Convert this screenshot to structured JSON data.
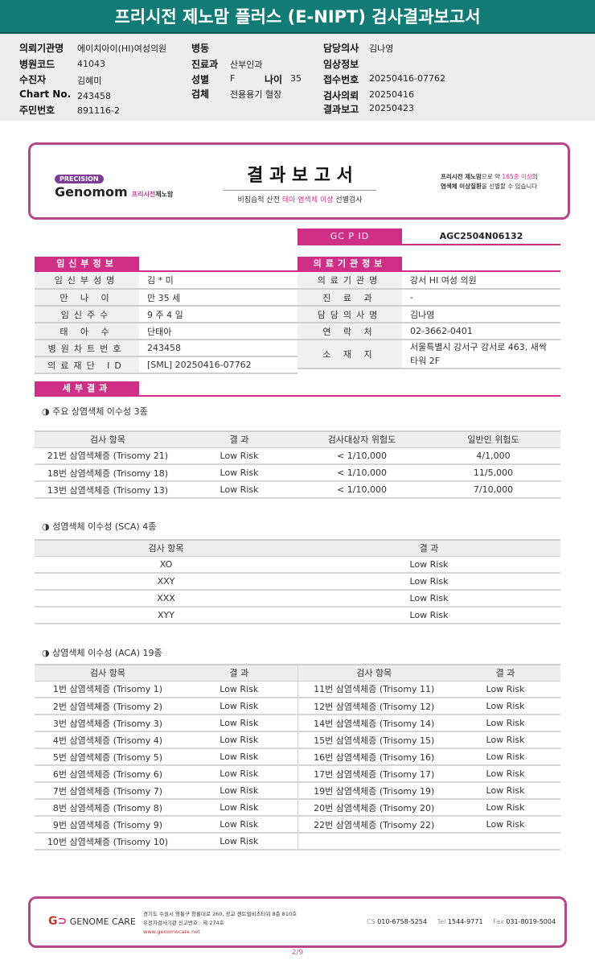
{
  "title": "프리시전 제노맘 플러스 (E-NIPT) 검사결과보고서",
  "info": {
    "institution_label": "의뢰기관명",
    "institution": "에이치아이(HI)여성의원",
    "hospital_code_label": "병원코드",
    "hospital_code": "41043",
    "patient_label": "수진자",
    "patient": "김혜미",
    "chart_label": "Chart No.",
    "chart": "243458",
    "rrn_label": "주민번호",
    "rrn": "891116-2",
    "ward_label": "병동",
    "ward": "",
    "dept_label": "진료과",
    "dept": "산부인과",
    "sex_label": "성별",
    "sex": "F",
    "age_label": "나이",
    "age": "35",
    "specimen_label": "검체",
    "specimen": "전용용기 혈장",
    "doctor_label": "담당의사",
    "doctor": "김나영",
    "clinical_label": "임상정보",
    "clinical": "",
    "receipt_label": "접수번호",
    "receipt": "20250416-07762",
    "request_label": "검사의뢰",
    "request": "20250416",
    "report_label": "결과보고",
    "report": "20250423"
  },
  "banner": {
    "badge": "PRECISION",
    "brand": "Genomom",
    "brand_sub1": "프리시전",
    "brand_sub2": "제노맘",
    "title": "결 과 보 고 서",
    "subtitle_pre": "비침습적 산전 ",
    "subtitle_hl": "태아 염색체 이상",
    "subtitle_post": " 선별검사",
    "right_1a": "프리시전 제노맘",
    "right_1b": "으로 약 ",
    "right_1c": "165종 이상",
    "right_1d": "의",
    "right_2a": "염색체 이상질환",
    "right_2b": "을 선별할 수 있습니다"
  },
  "gcpid": {
    "label": "GC P ID",
    "value": "AGC2504N06132"
  },
  "pregnant": {
    "header": "임신부정보",
    "rows": [
      {
        "k": "임신부성명",
        "v": "김 * 미"
      },
      {
        "k": "만 나 이",
        "v": "만 35 세"
      },
      {
        "k": "임신주수",
        "v": "9 주 4 일"
      },
      {
        "k": "태 아 수",
        "v": "단태아"
      },
      {
        "k": "병원차트번호",
        "v": "243458"
      },
      {
        "k": "의료재단 ID",
        "v": "[SML] 20250416-07762"
      }
    ]
  },
  "medical": {
    "header": "의료기관정보",
    "rows": [
      {
        "k": "의료기관명",
        "v": "강서 HI 여성 의원"
      },
      {
        "k": "진 료 과",
        "v": "-"
      },
      {
        "k": "담당의사명",
        "v": "김나영"
      },
      {
        "k": "연 락 처",
        "v": "02-3662-0401"
      },
      {
        "k": "소 재 지",
        "v": "서울특별시 강서구 강서로 463, 새싹타워 2F"
      }
    ]
  },
  "detail_header": "세부결과",
  "major": {
    "title": "◑ 주요 상염색체 이수성 3종",
    "headers": [
      "검사 항목",
      "결 과",
      "검사대상자 위험도",
      "일반인 위험도"
    ],
    "rows": [
      [
        "21번 삼염색체증 (Trisomy 21)",
        "Low Risk",
        "< 1/10,000",
        "4/1,000"
      ],
      [
        "18번 삼염색체증 (Trisomy 18)",
        "Low Risk",
        "< 1/10,000",
        "11/5,000"
      ],
      [
        "13번 삼염색체증 (Trisomy 13)",
        "Low Risk",
        "< 1/10,000",
        "7/10,000"
      ]
    ]
  },
  "sca": {
    "title": "◑ 성염색체 이수성 (SCA) 4종",
    "headers": [
      "검사 항목",
      "결 과"
    ],
    "rows": [
      [
        "XO",
        "Low Risk"
      ],
      [
        "XXY",
        "Low Risk"
      ],
      [
        "XXX",
        "Low Risk"
      ],
      [
        "XYY",
        "Low Risk"
      ]
    ]
  },
  "aca": {
    "title": "◑ 상염색체 이수성 (ACA) 19종",
    "headers": [
      "검사 항목",
      "결 과",
      "검사 항목",
      "결 과"
    ],
    "rows": [
      [
        "1번 삼염색체증 (Trisomy 1)",
        "Low Risk",
        "11번 삼염색체증 (Trisomy 11)",
        "Low Risk"
      ],
      [
        "2번 삼염색체증 (Trisomy 2)",
        "Low Risk",
        "12번 삼염색체증 (Trisomy 12)",
        "Low Risk"
      ],
      [
        "3번 삼염색체증 (Trisomy 3)",
        "Low Risk",
        "14번 삼염색체증 (Trisomy 14)",
        "Low Risk"
      ],
      [
        "4번 삼염색체증 (Trisomy 4)",
        "Low Risk",
        "15번 삼염색체증 (Trisomy 15)",
        "Low Risk"
      ],
      [
        "5번 삼염색체증 (Trisomy 5)",
        "Low Risk",
        "16번 삼염색체증 (Trisomy 16)",
        "Low Risk"
      ],
      [
        "6번 삼염색체증 (Trisomy 6)",
        "Low Risk",
        "17번 삼염색체증 (Trisomy 17)",
        "Low Risk"
      ],
      [
        "7번 삼염색체증 (Trisomy 7)",
        "Low Risk",
        "19번 삼염색체증 (Trisomy 19)",
        "Low Risk"
      ],
      [
        "8번 삼염색체증 (Trisomy 8)",
        "Low Risk",
        "20번 삼염색체증 (Trisomy 20)",
        "Low Risk"
      ],
      [
        "9번 삼염색체증 (Trisomy 9)",
        "Low Risk",
        "22번 삼염색체증 (Trisomy 22)",
        "Low Risk"
      ],
      [
        "10번 삼염색체증 (Trisomy 10)",
        "Low Risk",
        "",
        ""
      ]
    ]
  },
  "footer": {
    "logo": "GENOME CARE",
    "addr1": "경기도 수원시 영통구 창룡대로 260, 광교 센트럴비즈타워 8층 810호",
    "addr2": "유전자검사기관 신고번호 : 제 274호",
    "web": "www.genomecare.net",
    "cs_label": "CS",
    "cs": "010-6758-5254",
    "tel_label": "Tel",
    "tel": "1544-9771",
    "fax_label": "Fax",
    "fax": "031-8019-5004"
  },
  "page": "2/9",
  "colors": {
    "teal": "#137b76",
    "magenta": "#cf2f87",
    "frame": "#b8478a"
  }
}
